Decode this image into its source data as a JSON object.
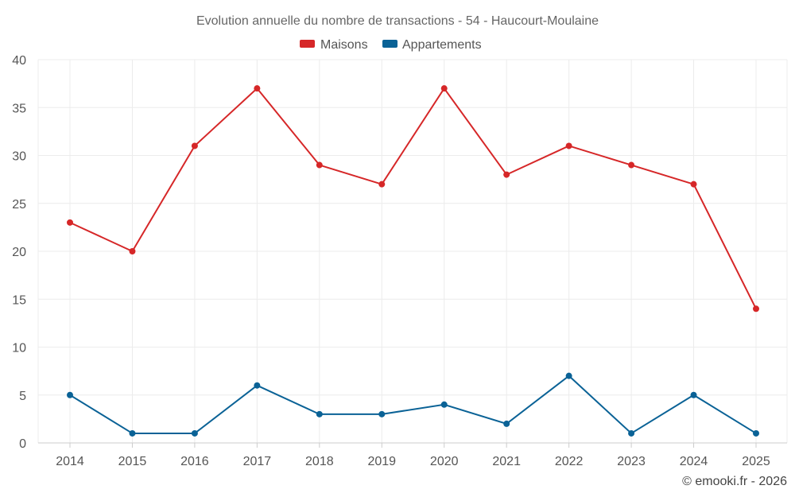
{
  "chart_data": {
    "type": "line",
    "title": "Evolution annuelle du nombre de transactions - 54 - Haucourt-Moulaine",
    "categories": [
      "2014",
      "2015",
      "2016",
      "2017",
      "2018",
      "2019",
      "2020",
      "2021",
      "2022",
      "2023",
      "2024",
      "2025"
    ],
    "series": [
      {
        "name": "Maisons",
        "color": "#d62728",
        "values": [
          23,
          20,
          31,
          37,
          29,
          27,
          37,
          28,
          31,
          29,
          27,
          14
        ]
      },
      {
        "name": "Appartements",
        "color": "#0a6296",
        "values": [
          5,
          1,
          1,
          6,
          3,
          3,
          4,
          2,
          7,
          1,
          5,
          1
        ]
      }
    ],
    "ylim": [
      0,
      40
    ],
    "yticks": [
      0,
      5,
      10,
      15,
      20,
      25,
      30,
      35,
      40
    ],
    "xlabel": "",
    "ylabel": "",
    "grid": true,
    "legend_position": "top-center"
  },
  "credit": "© emooki.fr - 2026"
}
